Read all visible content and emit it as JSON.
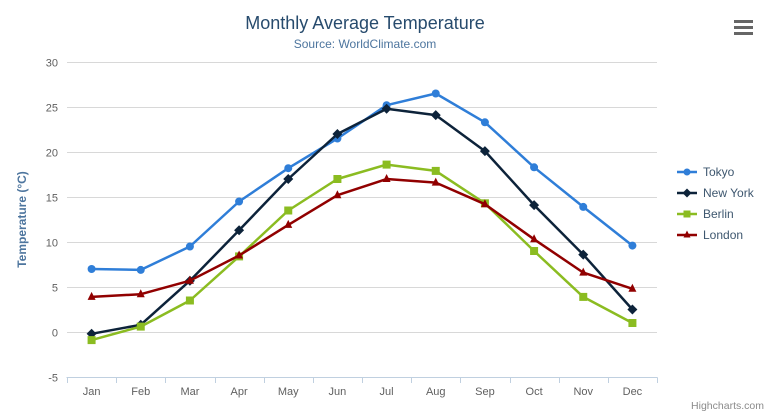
{
  "chart_data": {
    "type": "line",
    "title": "Monthly Average Temperature",
    "subtitle": "Source: WorldClimate.com",
    "categories": [
      "Jan",
      "Feb",
      "Mar",
      "Apr",
      "May",
      "Jun",
      "Jul",
      "Aug",
      "Sep",
      "Oct",
      "Nov",
      "Dec"
    ],
    "xlabel": "",
    "ylabel": "Temperature (°C)",
    "ylim": [
      -5,
      30
    ],
    "ytick_interval": 5,
    "grid": true,
    "legend_position": "right",
    "series": [
      {
        "name": "Tokyo",
        "color": "#2f7ed8",
        "marker": "circle",
        "values": [
          7.0,
          6.9,
          9.5,
          14.5,
          18.2,
          21.5,
          25.2,
          26.5,
          23.3,
          18.3,
          13.9,
          9.6
        ]
      },
      {
        "name": "New York",
        "color": "#0d233a",
        "marker": "diamond",
        "values": [
          -0.2,
          0.8,
          5.7,
          11.3,
          17.0,
          22.0,
          24.8,
          24.1,
          20.1,
          14.1,
          8.6,
          2.5
        ]
      },
      {
        "name": "Berlin",
        "color": "#8bbc21",
        "marker": "square",
        "values": [
          -0.9,
          0.6,
          3.5,
          8.4,
          13.5,
          17.0,
          18.6,
          17.9,
          14.3,
          9.0,
          3.9,
          1.0
        ]
      },
      {
        "name": "London",
        "color": "#910000",
        "marker": "triangle",
        "values": [
          3.9,
          4.2,
          5.7,
          8.5,
          11.9,
          15.2,
          17.0,
          16.6,
          14.2,
          10.3,
          6.6,
          4.8
        ]
      }
    ],
    "axis_style": {
      "line_color": "#c0d0e0",
      "grid_color": "#d8d8d8",
      "label_color": "#606060",
      "title_color": "#4d759e"
    },
    "credits": "Highcharts.com"
  },
  "export_menu": {
    "icon": "hamburger-menu-icon"
  }
}
